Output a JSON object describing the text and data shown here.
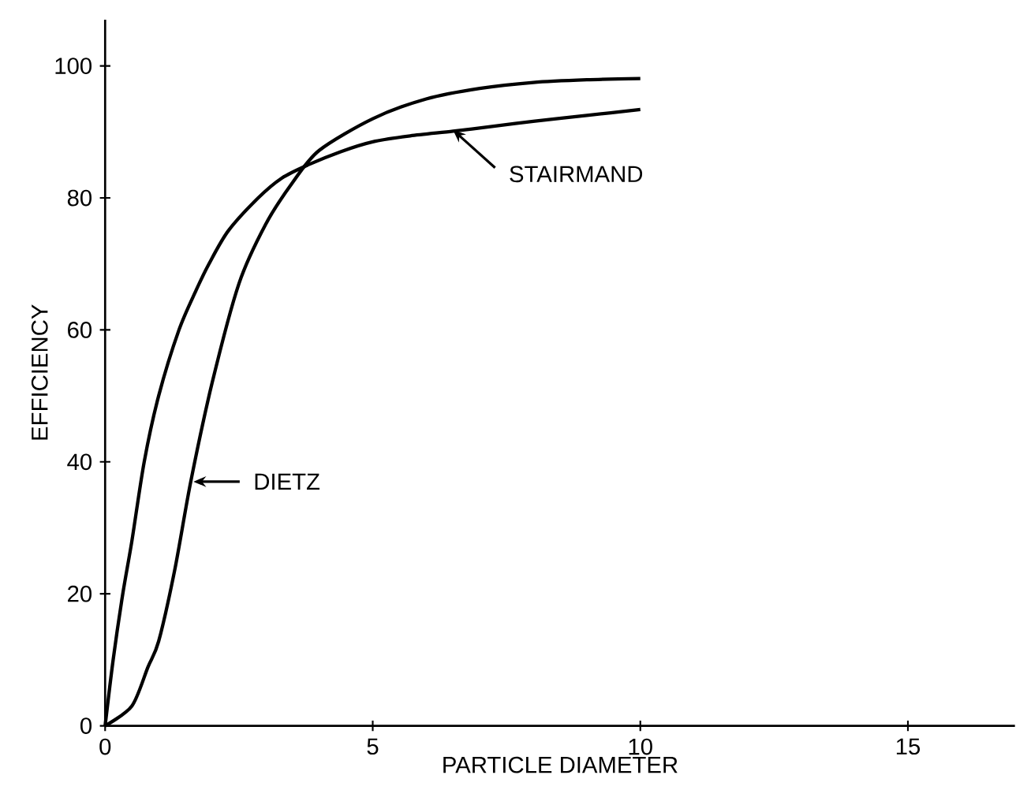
{
  "chart_data": {
    "type": "line",
    "xlabel": "PARTICLE DIAMETER",
    "ylabel": "EFFICIENCY",
    "xlim": [
      0,
      17
    ],
    "ylim": [
      0,
      107
    ],
    "xticks": [
      0,
      5,
      10,
      15
    ],
    "yticks": [
      0,
      20,
      40,
      60,
      80,
      100
    ],
    "grid": false,
    "marker": "none",
    "line_style": "solid",
    "series": [
      {
        "color": "#000000",
        "x": [
          0,
          0.15,
          0.33,
          0.5,
          0.73,
          1.0,
          1.38,
          1.7,
          1.94,
          2.3,
          2.86,
          3.3,
          3.79,
          4.4,
          5,
          5.7,
          6.5,
          7.2,
          8,
          9,
          10
        ],
        "values": [
          0,
          10,
          20,
          28,
          40,
          50,
          60,
          66,
          70,
          75,
          80,
          83,
          85,
          87,
          88.5,
          89.4,
          90.1,
          90.8,
          91.6,
          92.5,
          93.4
        ]
      },
      {
        "color": "#000000",
        "x": [
          0,
          0.5,
          0.8,
          1.0,
          1.3,
          1.6,
          2.0,
          2.5,
          3.0,
          3.5,
          4.0,
          5.0,
          6.0,
          7.0,
          8.0,
          9.0,
          10.0
        ],
        "values": [
          0,
          3,
          8.9,
          12.8,
          23.6,
          37,
          52,
          67,
          76,
          82.3,
          87.2,
          92,
          95,
          96.6,
          97.5,
          97.9,
          98.1
        ]
      }
    ],
    "annotations": [
      {
        "text": "STAIRMAND",
        "x": 6.5,
        "y": 90.3
      },
      {
        "text": "DIETZ",
        "x": 1.65,
        "y": 37
      }
    ]
  }
}
